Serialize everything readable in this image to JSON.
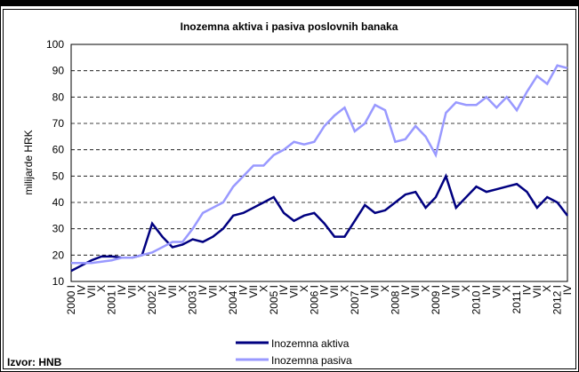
{
  "chart_data": {
    "type": "line",
    "title": "Inozemna aktiva i pasiva poslovnih banaka",
    "y_label": "milijarde HRK",
    "source": "Izvor: HNB",
    "categories": [
      "2000 I",
      "IV",
      "VII",
      "X",
      "2001 I",
      "IV",
      "VII",
      "X",
      "2002 I",
      "IV",
      "VII",
      "X",
      "2003 I",
      "IV",
      "VII",
      "X",
      "2004 I",
      "IV",
      "VII",
      "X",
      "2005 I",
      "IV",
      "VII",
      "X",
      "2006 I",
      "IV",
      "VII",
      "X",
      "2007 I",
      "IV",
      "VII",
      "X",
      "2008 I",
      "IV",
      "VII",
      "X",
      "2009 I",
      "IV",
      "VII",
      "X",
      "2010 I",
      "IV",
      "VII",
      "X",
      "2011 I",
      "IV",
      "VII",
      "X",
      "2012 I",
      "IV"
    ],
    "series": [
      {
        "name": "Inozemna aktiva",
        "color": "#000080",
        "values": [
          14,
          16,
          18,
          19.5,
          19.5,
          19,
          19,
          20,
          32,
          27,
          23,
          24,
          26,
          25,
          27,
          30,
          35,
          36,
          38,
          40,
          42,
          36,
          33,
          35,
          36,
          32,
          27,
          27,
          33,
          39,
          36,
          37,
          40,
          43,
          44,
          38,
          42,
          50,
          38,
          42,
          46,
          44,
          45,
          46,
          47,
          44,
          38,
          42,
          40,
          35
        ]
      },
      {
        "name": "Inozemna pasiva",
        "color": "#9999ff",
        "values": [
          17,
          17,
          17,
          17.5,
          18,
          19,
          19,
          20,
          21,
          23,
          25,
          25,
          30,
          36,
          38,
          40,
          46,
          50,
          54,
          54,
          58,
          60,
          63,
          62,
          63,
          69,
          73,
          76,
          67,
          70,
          77,
          75,
          63,
          64,
          69,
          65,
          58,
          74,
          78,
          77,
          77,
          80,
          76,
          80,
          75,
          82,
          88,
          85,
          92,
          91
        ]
      }
    ],
    "ylim": [
      10,
      100
    ],
    "yticks": [
      10,
      20,
      30,
      40,
      50,
      60,
      70,
      80,
      90,
      100
    ],
    "grid": true,
    "legend": "bottom"
  }
}
